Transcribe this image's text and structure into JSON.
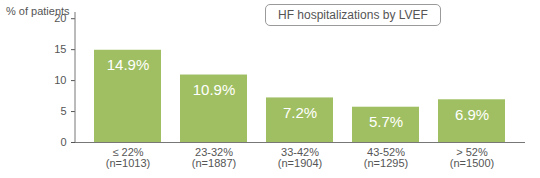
{
  "chart_data": {
    "type": "bar",
    "title": "HF hospitalizations by LVEF",
    "y_label": "% of patients",
    "categories": [
      "≤ 22%\n(n=1013)",
      "23-32%\n(n=1887)",
      "33-42%\n(n=1904)",
      "43-52%\n(n=1295)",
      "> 52%\n(n=1500)"
    ],
    "values": [
      14.9,
      10.9,
      7.2,
      5.7,
      6.9
    ],
    "value_labels": [
      "14.9%",
      "10.9%",
      "7.2%",
      "5.7%",
      "6.9%"
    ],
    "color": "#9fbf62",
    "data_labels": true,
    "grid": false,
    "ylim": [
      0,
      21
    ],
    "yticks": [
      0,
      5,
      10,
      15,
      20
    ]
  }
}
